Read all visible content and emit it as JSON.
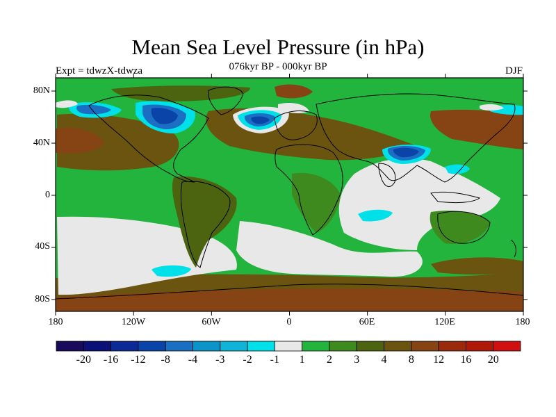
{
  "header": {
    "title": "Mean Sea Level Pressure (in hPa)",
    "subtitle": "076kyr BP - 000kyr BP",
    "left_label": "Expt = tdwzX-tdwza",
    "right_label": "DJF"
  },
  "axes": {
    "lat_ticks": [
      "80N",
      "40N",
      "0",
      "40S",
      "80S"
    ],
    "lon_ticks": [
      "180",
      "120W",
      "60W",
      "0",
      "60E",
      "120E",
      "180"
    ]
  },
  "colorbar": {
    "labels": [
      "-20",
      "-16",
      "-12",
      "-8",
      "-4",
      "-3",
      "-2",
      "-1",
      "1",
      "2",
      "3",
      "4",
      "8",
      "12",
      "16",
      "20"
    ],
    "colors": [
      "#1a0a5c",
      "#0b0f78",
      "#0c2a96",
      "#0a44a8",
      "#1a6fc2",
      "#0a94c8",
      "#10b4d8",
      "#00e0e8",
      "#e8e8e8",
      "#22b43c",
      "#3f8a1e",
      "#4c6410",
      "#6a5410",
      "#864414",
      "#9a2a0c",
      "#b0180a",
      "#d01010"
    ]
  },
  "map_colors": {
    "ocean_base": "#22b43c",
    "neutral": "#e8e8e8",
    "brown": "#6a5410",
    "olive": "#4c6410",
    "darkgreen": "#3f8a1e",
    "rust": "#864414",
    "cyan": "#00e0e8",
    "blue": "#1a6fc2",
    "deepblue": "#0a44a8"
  }
}
